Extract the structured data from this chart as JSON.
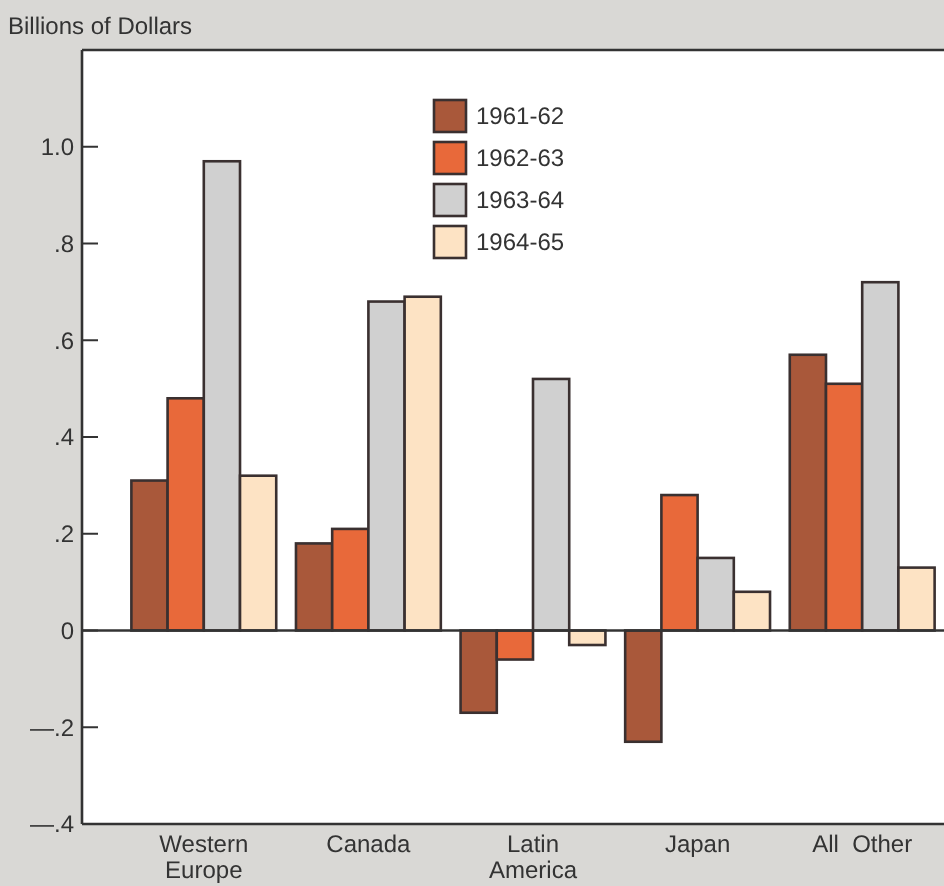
{
  "chart_data": {
    "type": "bar",
    "ylabel": "Billions of Dollars",
    "categories": [
      "Western\nEurope",
      "Canada",
      "Latin\nAmerica",
      "Japan",
      "All  Other"
    ],
    "series": [
      {
        "name": "1961-62",
        "color": "#a9583a",
        "values": [
          0.31,
          0.18,
          -0.17,
          -0.23,
          0.57
        ]
      },
      {
        "name": "1962-63",
        "color": "#e8693a",
        "values": [
          0.48,
          0.21,
          -0.06,
          0.28,
          0.51
        ]
      },
      {
        "name": "1963-64",
        "color": "#d0d0d0",
        "values": [
          0.97,
          0.68,
          0.52,
          0.15,
          0.72
        ]
      },
      {
        "name": "1964-65",
        "color": "#fde3c4",
        "values": [
          0.32,
          0.69,
          -0.03,
          0.08,
          0.13
        ]
      }
    ],
    "ylim": [
      -0.4,
      1.2
    ],
    "yticks": [
      {
        "value": -0.4,
        "label": "—.4"
      },
      {
        "value": -0.2,
        "label": "—.2"
      },
      0,
      {
        "value": 0.2,
        "label": ".2"
      },
      {
        "value": 0.4,
        "label": ".4"
      },
      {
        "value": 0.6,
        "label": ".6"
      },
      {
        "value": 0.8,
        "label": ".8"
      },
      {
        "value": 1,
        "label": "1.0"
      }
    ],
    "legend": "top"
  }
}
